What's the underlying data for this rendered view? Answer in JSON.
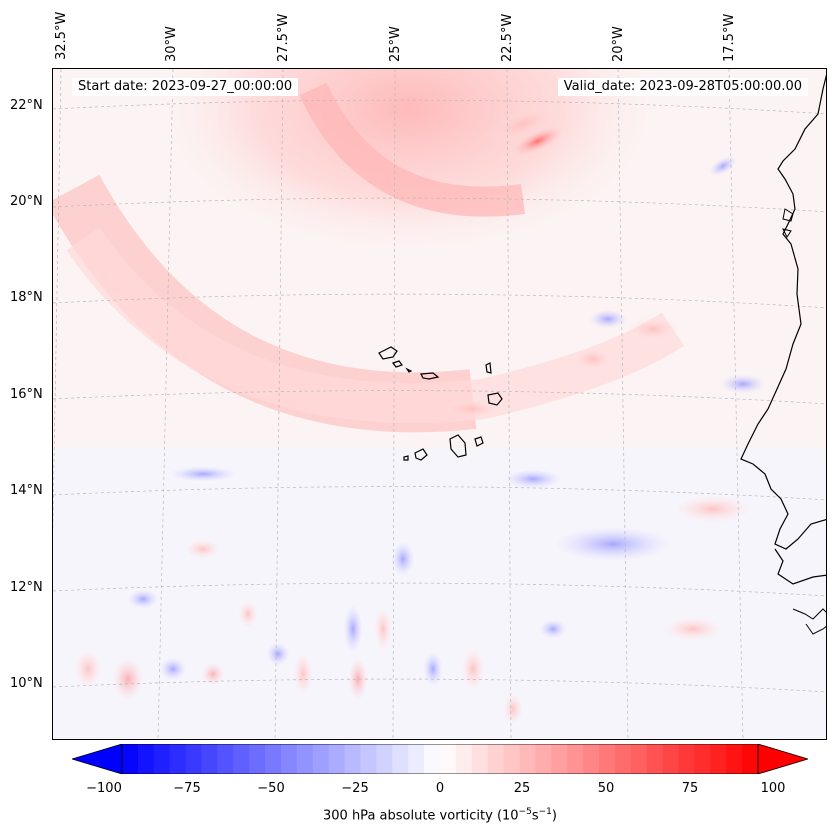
{
  "map": {
    "start_date": "Start date: 2023-09-27_00:00:00",
    "valid_date": "Valid_date: 2023-09-28T05:00:00.00",
    "lon_labels": [
      "32.5°W",
      "30°W",
      "27.5°W",
      "25°W",
      "22.5°W",
      "20°W",
      "17.5°W"
    ],
    "lat_labels": [
      "22°N",
      "20°N",
      "18°N",
      "16°N",
      "14°N",
      "12°N",
      "10°N"
    ],
    "field": "300 hPa absolute vorticity",
    "colors": {
      "positive": "#ff0000",
      "negative": "#0000ff",
      "coastline": "#000000",
      "gridline": "#bbbbbb"
    }
  },
  "colorbar": {
    "label": "300 hPa absolute vorticity",
    "units_prefix": "(10",
    "units_exp1": "−5",
    "units_mid": "s",
    "units_exp2": "−1",
    "units_suffix": ")",
    "ticks": [
      "−100",
      "−75",
      "−50",
      "−25",
      "0",
      "25",
      "50",
      "75",
      "100"
    ],
    "range": [
      -100,
      100
    ],
    "extend": "both"
  }
}
